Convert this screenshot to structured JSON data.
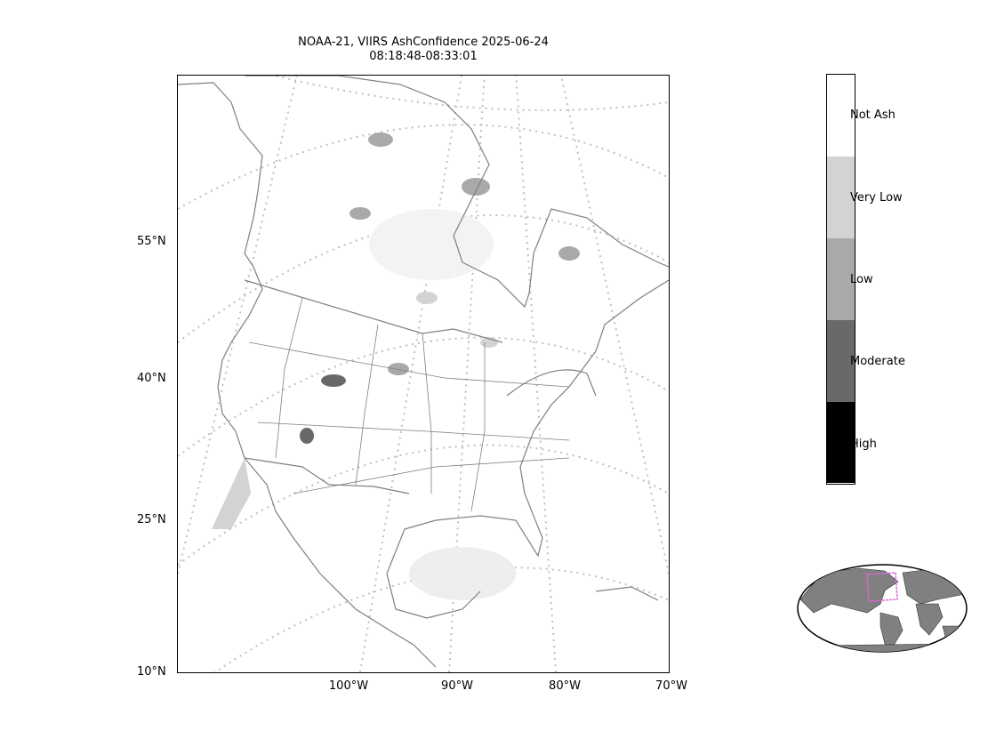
{
  "title": {
    "line1": "NOAA-21, VIIRS AshConfidence 2025-06-24",
    "line2": "08:18:48-08:33:01"
  },
  "axes": {
    "lat_labels": [
      "55°N",
      "40°N",
      "25°N",
      "10°N"
    ],
    "lon_labels": [
      "100°W",
      "90°W",
      "80°W",
      "70°W"
    ]
  },
  "colorbar": {
    "categories": [
      {
        "label": "Not Ash",
        "color": "#ffffff"
      },
      {
        "label": "Very Low",
        "color": "#d3d3d3"
      },
      {
        "label": "Low",
        "color": "#a9a9a9"
      },
      {
        "label": "Moderate",
        "color": "#696969"
      },
      {
        "label": "High",
        "color": "#000000"
      }
    ]
  },
  "colors": {
    "coastline": "#7f7f7f",
    "graticule": "#bfbfbf",
    "inset_land": "#808080",
    "inset_box": "#e066e0"
  }
}
